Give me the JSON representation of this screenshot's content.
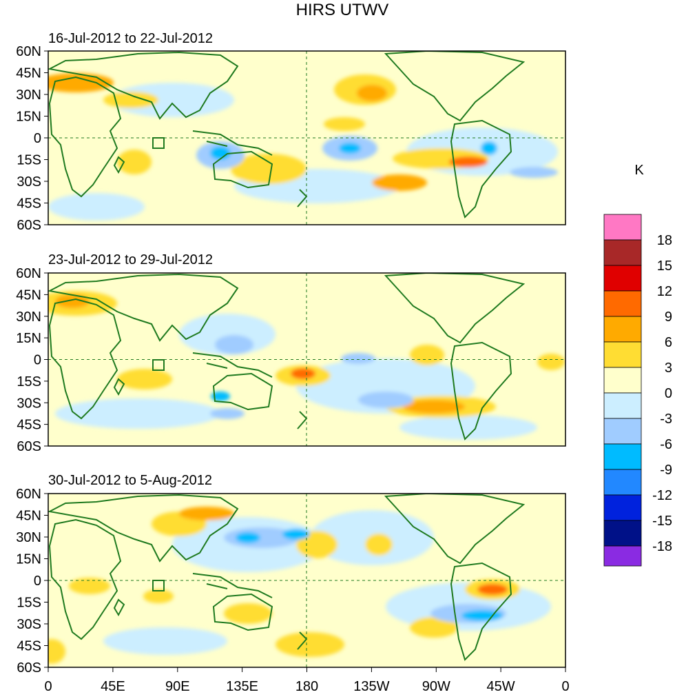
{
  "figure": {
    "title": "HIRS UTWV"
  },
  "panels": [
    {
      "id": "week1",
      "date_range": "16-Jul-2012 to 22-Jul-2012"
    },
    {
      "id": "week2",
      "date_range": "23-Jul-2012 to 29-Jul-2012"
    },
    {
      "id": "week3",
      "date_range": "30-Jul-2012 to 5-Aug-2012"
    }
  ],
  "axes": {
    "lat_labels": [
      "60N",
      "45N",
      "30N",
      "15N",
      "0",
      "15S",
      "30S",
      "45S",
      "60S"
    ],
    "lat_values": [
      60,
      45,
      30,
      15,
      0,
      -15,
      -30,
      -45,
      -60
    ],
    "lon_labels": [
      "0",
      "45E",
      "90E",
      "135E",
      "180",
      "135W",
      "90W",
      "45W",
      "0"
    ],
    "lon_values": [
      0,
      45,
      90,
      135,
      180,
      225,
      270,
      315,
      360
    ],
    "lat_range": [
      -60,
      60
    ],
    "lon_range": [
      0,
      360
    ]
  },
  "colorbar": {
    "unit": "K",
    "levels": [
      "18",
      "15",
      "12",
      "9",
      "6",
      "3",
      "0",
      "-3",
      "-6",
      "-9",
      "-12",
      "-15",
      "-18"
    ],
    "colors_top_to_bottom": [
      "#ff78c4",
      "#a82828",
      "#e00000",
      "#ff6a00",
      "#ffaa00",
      "#ffdd33",
      "#ffffcc",
      "#cceeff",
      "#a0ccff",
      "#00bbff",
      "#2288ff",
      "#0022dd",
      "#001188",
      "#8a2be2"
    ]
  },
  "colors": {
    "coast": "#1f7a1f",
    "axis": "#000000"
  }
}
